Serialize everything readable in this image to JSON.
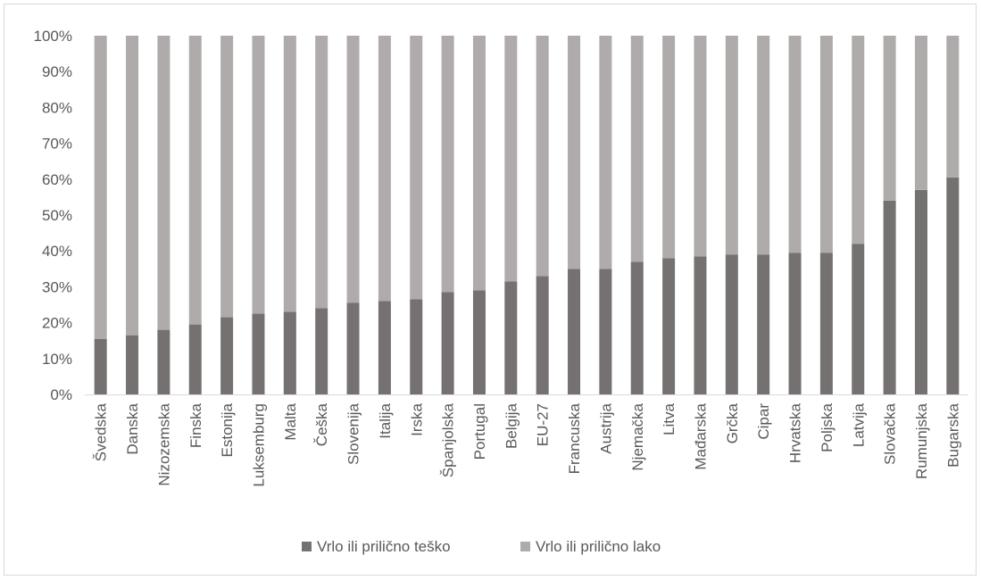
{
  "chart_data": {
    "type": "bar",
    "stacked": true,
    "percent_stacked": true,
    "title": "",
    "xlabel": "",
    "ylabel": "",
    "ylim": [
      0,
      100
    ],
    "yticks": [
      "0%",
      "10%",
      "20%",
      "30%",
      "40%",
      "50%",
      "60%",
      "70%",
      "80%",
      "90%",
      "100%"
    ],
    "grid": false,
    "legend_position": "bottom",
    "categories": [
      "Švedska",
      "Danska",
      "Nizozemska",
      "Finska",
      "Estonija",
      "Luksemburg",
      "Malta",
      "Češka",
      "Slovenija",
      "Italija",
      "Irska",
      "Španjolska",
      "Portugal",
      "Belgija",
      "EU-27",
      "Francuska",
      "Austrija",
      "Njemačka",
      "Litva",
      "Mađarska",
      "Grčka",
      "Cipar",
      "Hrvatska",
      "Poljska",
      "Latvija",
      "Slovačka",
      "Rumunjska",
      "Bugarska"
    ],
    "series": [
      {
        "name": "Vrlo ili prilično teško",
        "color": "#767171",
        "values": [
          15.5,
          16.5,
          18,
          19.5,
          21.5,
          22.5,
          23,
          24,
          25.5,
          26,
          26.5,
          28.5,
          29,
          31.5,
          33,
          35,
          35,
          37,
          38,
          38.5,
          39,
          39,
          39.5,
          39.5,
          42,
          54,
          57,
          60.5
        ]
      },
      {
        "name": "Vrlo ili prilično lako",
        "color": "#afabab",
        "values": [
          84.5,
          83.5,
          82,
          80.5,
          78.5,
          77.5,
          77,
          76,
          74.5,
          74,
          73.5,
          71.5,
          71,
          68.5,
          67,
          65,
          65,
          63,
          62,
          61.5,
          61,
          61,
          60.5,
          60.5,
          58,
          46,
          43,
          39.5
        ]
      }
    ]
  }
}
